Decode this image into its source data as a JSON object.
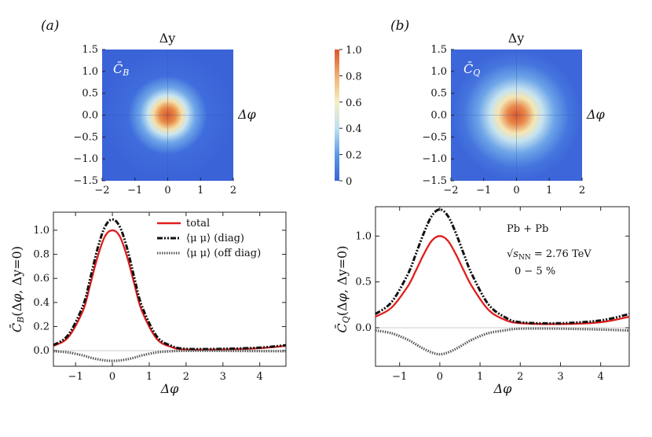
{
  "panels": [
    {
      "label": "(a)",
      "heat_symbol": "C̄",
      "heat_sub": "B"
    },
    {
      "label": "(b)",
      "heat_symbol": "C̄",
      "heat_sub": "Q"
    }
  ],
  "colorbar": {
    "ticks": [
      "1.0",
      "0.8",
      "0.6",
      "0.4",
      "0.2",
      "0"
    ],
    "values": [
      1.0,
      0.8,
      0.6,
      0.4,
      0.2,
      0
    ],
    "colors": [
      "#3a63d8",
      "#5b9ae6",
      "#bfe1f0",
      "#f5efc6",
      "#f0b070",
      "#d9562a"
    ]
  },
  "annotations": {
    "system": "Pb + Pb",
    "energy_prefix": "√",
    "energy_var": "s",
    "energy_sub": "NN",
    "energy_value": " = 2.76 TeV",
    "centrality": "0 − 5 %"
  },
  "chart_data": [
    {
      "type": "heatmap",
      "panel": "(a)",
      "title": "C̄_B",
      "xlabel": "Δy",
      "ylabel": "Δφ",
      "x_ticks": [
        "−2",
        "−1",
        "0",
        "1",
        "2"
      ],
      "y_ticks": [
        "1.5",
        "1.0",
        "0.5",
        "0.0",
        "−0.5",
        "−1.0",
        "−1.5"
      ],
      "xlim": [
        -2,
        2
      ],
      "ylim": [
        -1.5,
        1.5
      ],
      "peak_value": 1.0,
      "sigma": 0.5
    },
    {
      "type": "heatmap",
      "panel": "(b)",
      "title": "C̄_Q",
      "xlabel": "Δy",
      "ylabel": "Δφ",
      "x_ticks": [
        "−2",
        "−1",
        "0",
        "1",
        "2"
      ],
      "y_ticks": [
        "1.5",
        "1.0",
        "0.5",
        "0.0",
        "−0.5",
        "−1.0",
        "−1.5"
      ],
      "xlim": [
        -2,
        2
      ],
      "ylim": [
        -1.5,
        1.5
      ],
      "peak_value": 1.0,
      "sigma": 0.72
    },
    {
      "type": "line",
      "panel": "(a)",
      "xlabel": "Δφ",
      "ylabel": "C̄_B(Δφ, Δy=0)",
      "xlim": [
        -1.6,
        4.71
      ],
      "ylim": [
        -0.13,
        1.15
      ],
      "x_ticks": [
        -1,
        0,
        1,
        2,
        3,
        4
      ],
      "x_tick_labels": [
        "−1",
        "0",
        "1",
        "2",
        "3",
        "4"
      ],
      "y_ticks": [
        0.0,
        0.2,
        0.4,
        0.6,
        0.8,
        1.0
      ],
      "y_tick_labels": [
        "0.0",
        "0.2",
        "0.4",
        "0.6",
        "0.8",
        "1.0"
      ],
      "legend": [
        "total",
        "⟨μ μ⟩ (diag)",
        "⟨μ μ⟩ (off diag)"
      ],
      "x": [
        -1.6,
        -1.2,
        -0.8,
        -0.6,
        -0.4,
        -0.2,
        0,
        0.2,
        0.4,
        0.6,
        0.8,
        1.2,
        1.6,
        2.0,
        3.0,
        4.0,
        4.71
      ],
      "series": [
        {
          "name": "total",
          "values": [
            0.04,
            0.11,
            0.33,
            0.55,
            0.78,
            0.95,
            1.0,
            0.95,
            0.78,
            0.55,
            0.33,
            0.1,
            0.03,
            0.01,
            0.01,
            0.02,
            0.04
          ]
        },
        {
          "name": "⟨μ μ⟩ (diag)",
          "values": [
            0.045,
            0.13,
            0.37,
            0.6,
            0.85,
            1.03,
            1.09,
            1.03,
            0.85,
            0.6,
            0.37,
            0.12,
            0.04,
            0.015,
            0.015,
            0.025,
            0.045
          ]
        },
        {
          "name": "⟨μ μ⟩ (off diag)",
          "values": [
            -0.005,
            -0.015,
            -0.04,
            -0.058,
            -0.072,
            -0.082,
            -0.085,
            -0.082,
            -0.072,
            -0.058,
            -0.04,
            -0.015,
            -0.005,
            -0.002,
            -0.002,
            -0.004,
            -0.005
          ]
        }
      ]
    },
    {
      "type": "line",
      "panel": "(b)",
      "xlabel": "Δφ",
      "ylabel": "C̄_Q(Δφ, Δy=0)",
      "xlim": [
        -1.6,
        4.71
      ],
      "ylim": [
        -0.42,
        1.32
      ],
      "x_ticks": [
        -1,
        0,
        1,
        2,
        3,
        4
      ],
      "x_tick_labels": [
        "−1",
        "0",
        "1",
        "2",
        "3",
        "4"
      ],
      "y_ticks": [
        0.0,
        0.5,
        1.0
      ],
      "y_tick_labels": [
        "0.0",
        "0.5",
        "1.0"
      ],
      "x": [
        -1.6,
        -1.2,
        -0.8,
        -0.6,
        -0.4,
        -0.2,
        0,
        0.2,
        0.4,
        0.6,
        0.8,
        1.2,
        1.6,
        2.0,
        3.0,
        4.0,
        4.71
      ],
      "series": [
        {
          "name": "total",
          "values": [
            0.12,
            0.22,
            0.45,
            0.62,
            0.8,
            0.95,
            1.0,
            0.95,
            0.8,
            0.62,
            0.45,
            0.2,
            0.09,
            0.05,
            0.04,
            0.06,
            0.12
          ]
        },
        {
          "name": "⟨μ μ⟩ (diag)",
          "values": [
            0.15,
            0.28,
            0.58,
            0.8,
            1.03,
            1.22,
            1.29,
            1.22,
            1.03,
            0.8,
            0.58,
            0.26,
            0.12,
            0.06,
            0.05,
            0.08,
            0.15
          ]
        },
        {
          "name": "⟨μ μ⟩ (off diag)",
          "values": [
            -0.03,
            -0.06,
            -0.13,
            -0.18,
            -0.23,
            -0.27,
            -0.29,
            -0.27,
            -0.23,
            -0.18,
            -0.13,
            -0.06,
            -0.03,
            -0.01,
            -0.01,
            -0.02,
            -0.03
          ]
        }
      ]
    }
  ]
}
